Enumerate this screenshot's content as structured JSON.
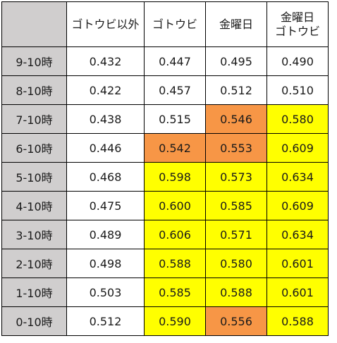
{
  "colors": {
    "header_gray": "#d0cece",
    "normal": "#ffffff",
    "yellow": "#ffff00",
    "orange": "#f79646"
  },
  "columns": [
    {
      "label": ""
    },
    {
      "label": "ゴトウビ以外"
    },
    {
      "label": "ゴトウビ"
    },
    {
      "label": "金曜日"
    },
    {
      "label": "金曜日\nゴトウビ"
    }
  ],
  "rows": [
    {
      "label": "9-10時",
      "values": [
        "0.432",
        "0.447",
        "0.495",
        "0.490"
      ],
      "highlights": [
        "normal",
        "normal",
        "normal",
        "normal"
      ]
    },
    {
      "label": "8-10時",
      "values": [
        "0.422",
        "0.457",
        "0.512",
        "0.510"
      ],
      "highlights": [
        "normal",
        "normal",
        "normal",
        "normal"
      ]
    },
    {
      "label": "7-10時",
      "values": [
        "0.438",
        "0.515",
        "0.546",
        "0.580"
      ],
      "highlights": [
        "normal",
        "normal",
        "orange",
        "yellow"
      ]
    },
    {
      "label": "6-10時",
      "values": [
        "0.446",
        "0.542",
        "0.553",
        "0.609"
      ],
      "highlights": [
        "normal",
        "orange",
        "orange",
        "yellow"
      ]
    },
    {
      "label": "5-10時",
      "values": [
        "0.468",
        "0.598",
        "0.573",
        "0.634"
      ],
      "highlights": [
        "normal",
        "yellow",
        "yellow",
        "yellow"
      ]
    },
    {
      "label": "4-10時",
      "values": [
        "0.475",
        "0.600",
        "0.585",
        "0.609"
      ],
      "highlights": [
        "normal",
        "yellow",
        "yellow",
        "yellow"
      ]
    },
    {
      "label": "3-10時",
      "values": [
        "0.489",
        "0.606",
        "0.571",
        "0.634"
      ],
      "highlights": [
        "normal",
        "yellow",
        "yellow",
        "yellow"
      ]
    },
    {
      "label": "2-10時",
      "values": [
        "0.498",
        "0.588",
        "0.580",
        "0.601"
      ],
      "highlights": [
        "normal",
        "yellow",
        "yellow",
        "yellow"
      ]
    },
    {
      "label": "1-10時",
      "values": [
        "0.503",
        "0.585",
        "0.588",
        "0.601"
      ],
      "highlights": [
        "normal",
        "yellow",
        "yellow",
        "yellow"
      ]
    },
    {
      "label": "0-10時",
      "values": [
        "0.512",
        "0.590",
        "0.556",
        "0.588"
      ],
      "highlights": [
        "normal",
        "yellow",
        "orange",
        "yellow"
      ]
    }
  ]
}
